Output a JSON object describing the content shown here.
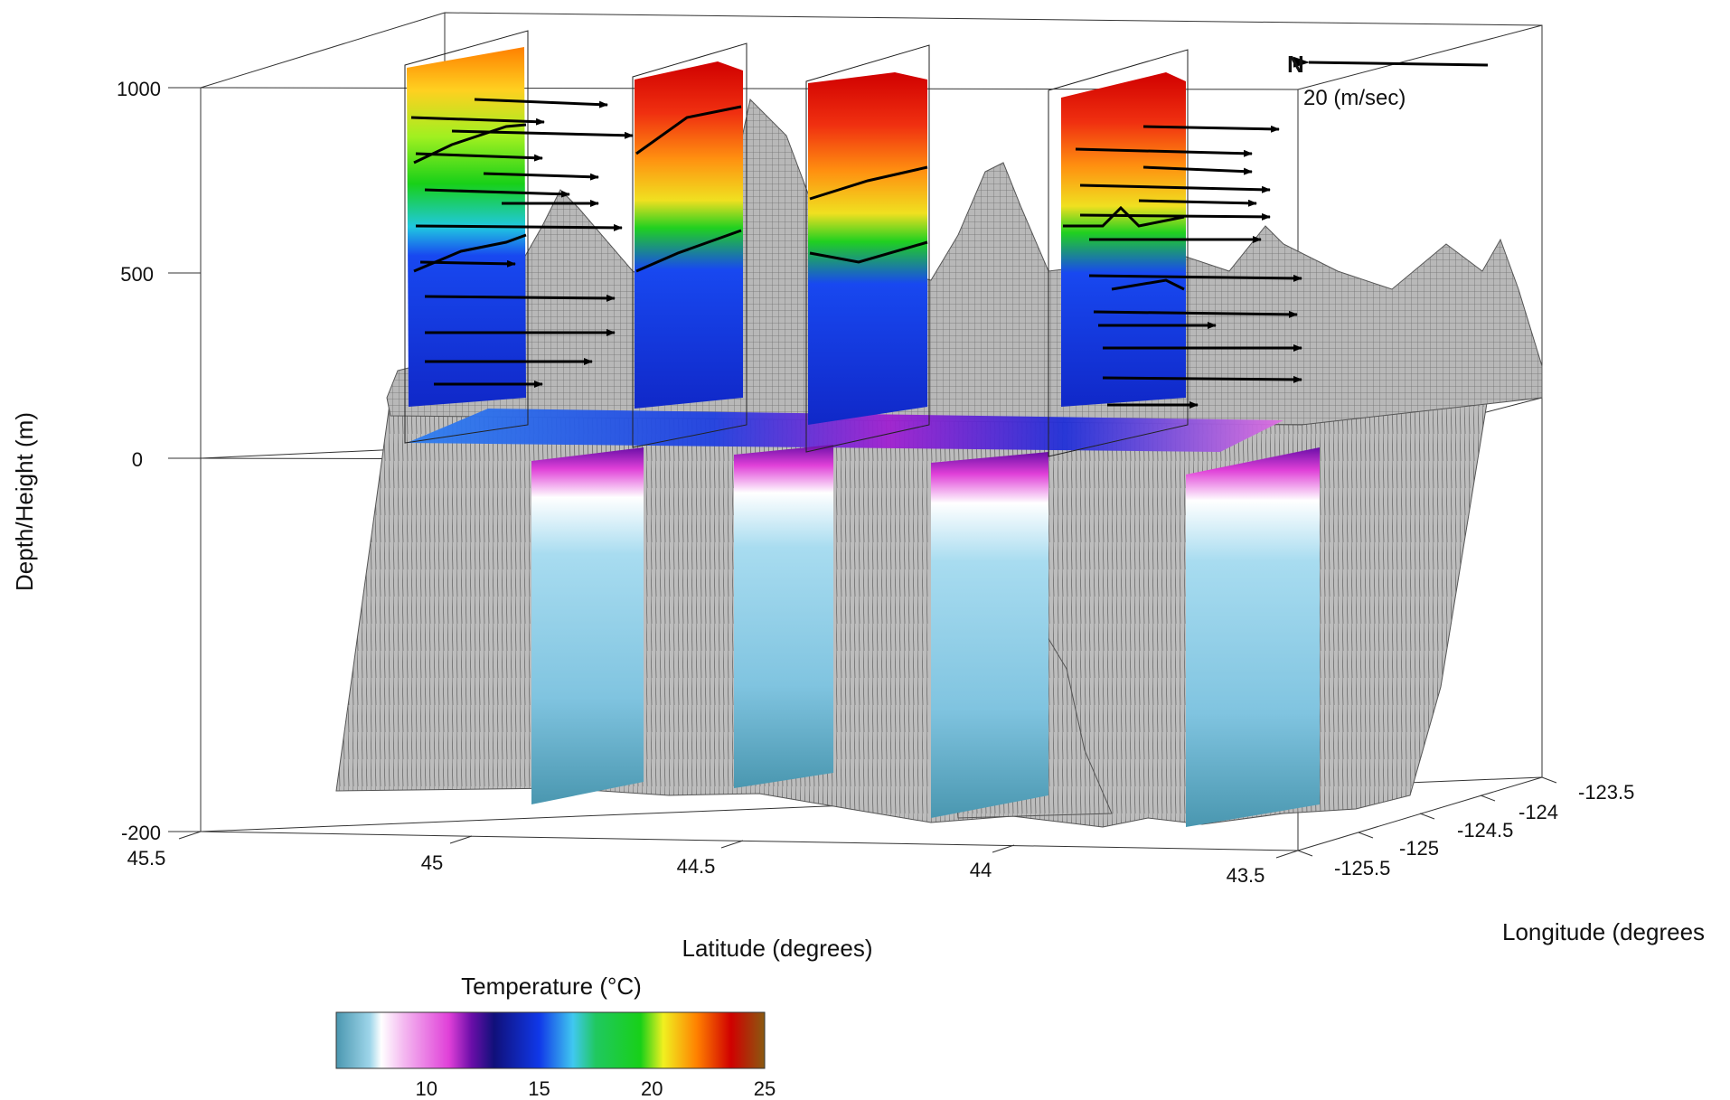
{
  "chart_data": {
    "type": "3d-surface",
    "title": "",
    "zlabel": "Depth/Height (m)",
    "xlabel": "Latitude (degrees)",
    "ylabel": "Longitude (degrees",
    "z_ticks": [
      "1000",
      "500",
      "0",
      "-200"
    ],
    "x_ticks": [
      "45.5",
      "45",
      "44.5",
      "44",
      "43.5"
    ],
    "y_ticks": [
      "-125.5",
      "-125",
      "-124.5",
      "-124",
      "-123.5"
    ],
    "vector_legend": {
      "symbol": "N",
      "label": "20 (m/sec)"
    },
    "colorbar": {
      "title": "Temperature (°C)",
      "ticks": [
        "10",
        "15",
        "20",
        "25"
      ],
      "range": [
        6,
        25
      ],
      "stops": [
        {
          "t": 6,
          "color": "#4a97b0"
        },
        {
          "t": 7.5,
          "color": "#9fd6ea"
        },
        {
          "t": 8,
          "color": "#ffffff"
        },
        {
          "t": 9,
          "color": "#f4b8f0"
        },
        {
          "t": 11,
          "color": "#e040d8"
        },
        {
          "t": 12,
          "color": "#6a0ea8"
        },
        {
          "t": 13,
          "color": "#10107a"
        },
        {
          "t": 15,
          "color": "#1038e8"
        },
        {
          "t": 16.5,
          "color": "#40c8f0"
        },
        {
          "t": 17.5,
          "color": "#20c860"
        },
        {
          "t": 19.5,
          "color": "#18d018"
        },
        {
          "t": 20.5,
          "color": "#f0f020"
        },
        {
          "t": 22,
          "color": "#ff8000"
        },
        {
          "t": 23.5,
          "color": "#d00000"
        },
        {
          "t": 25,
          "color": "#8a5a10"
        }
      ]
    }
  }
}
